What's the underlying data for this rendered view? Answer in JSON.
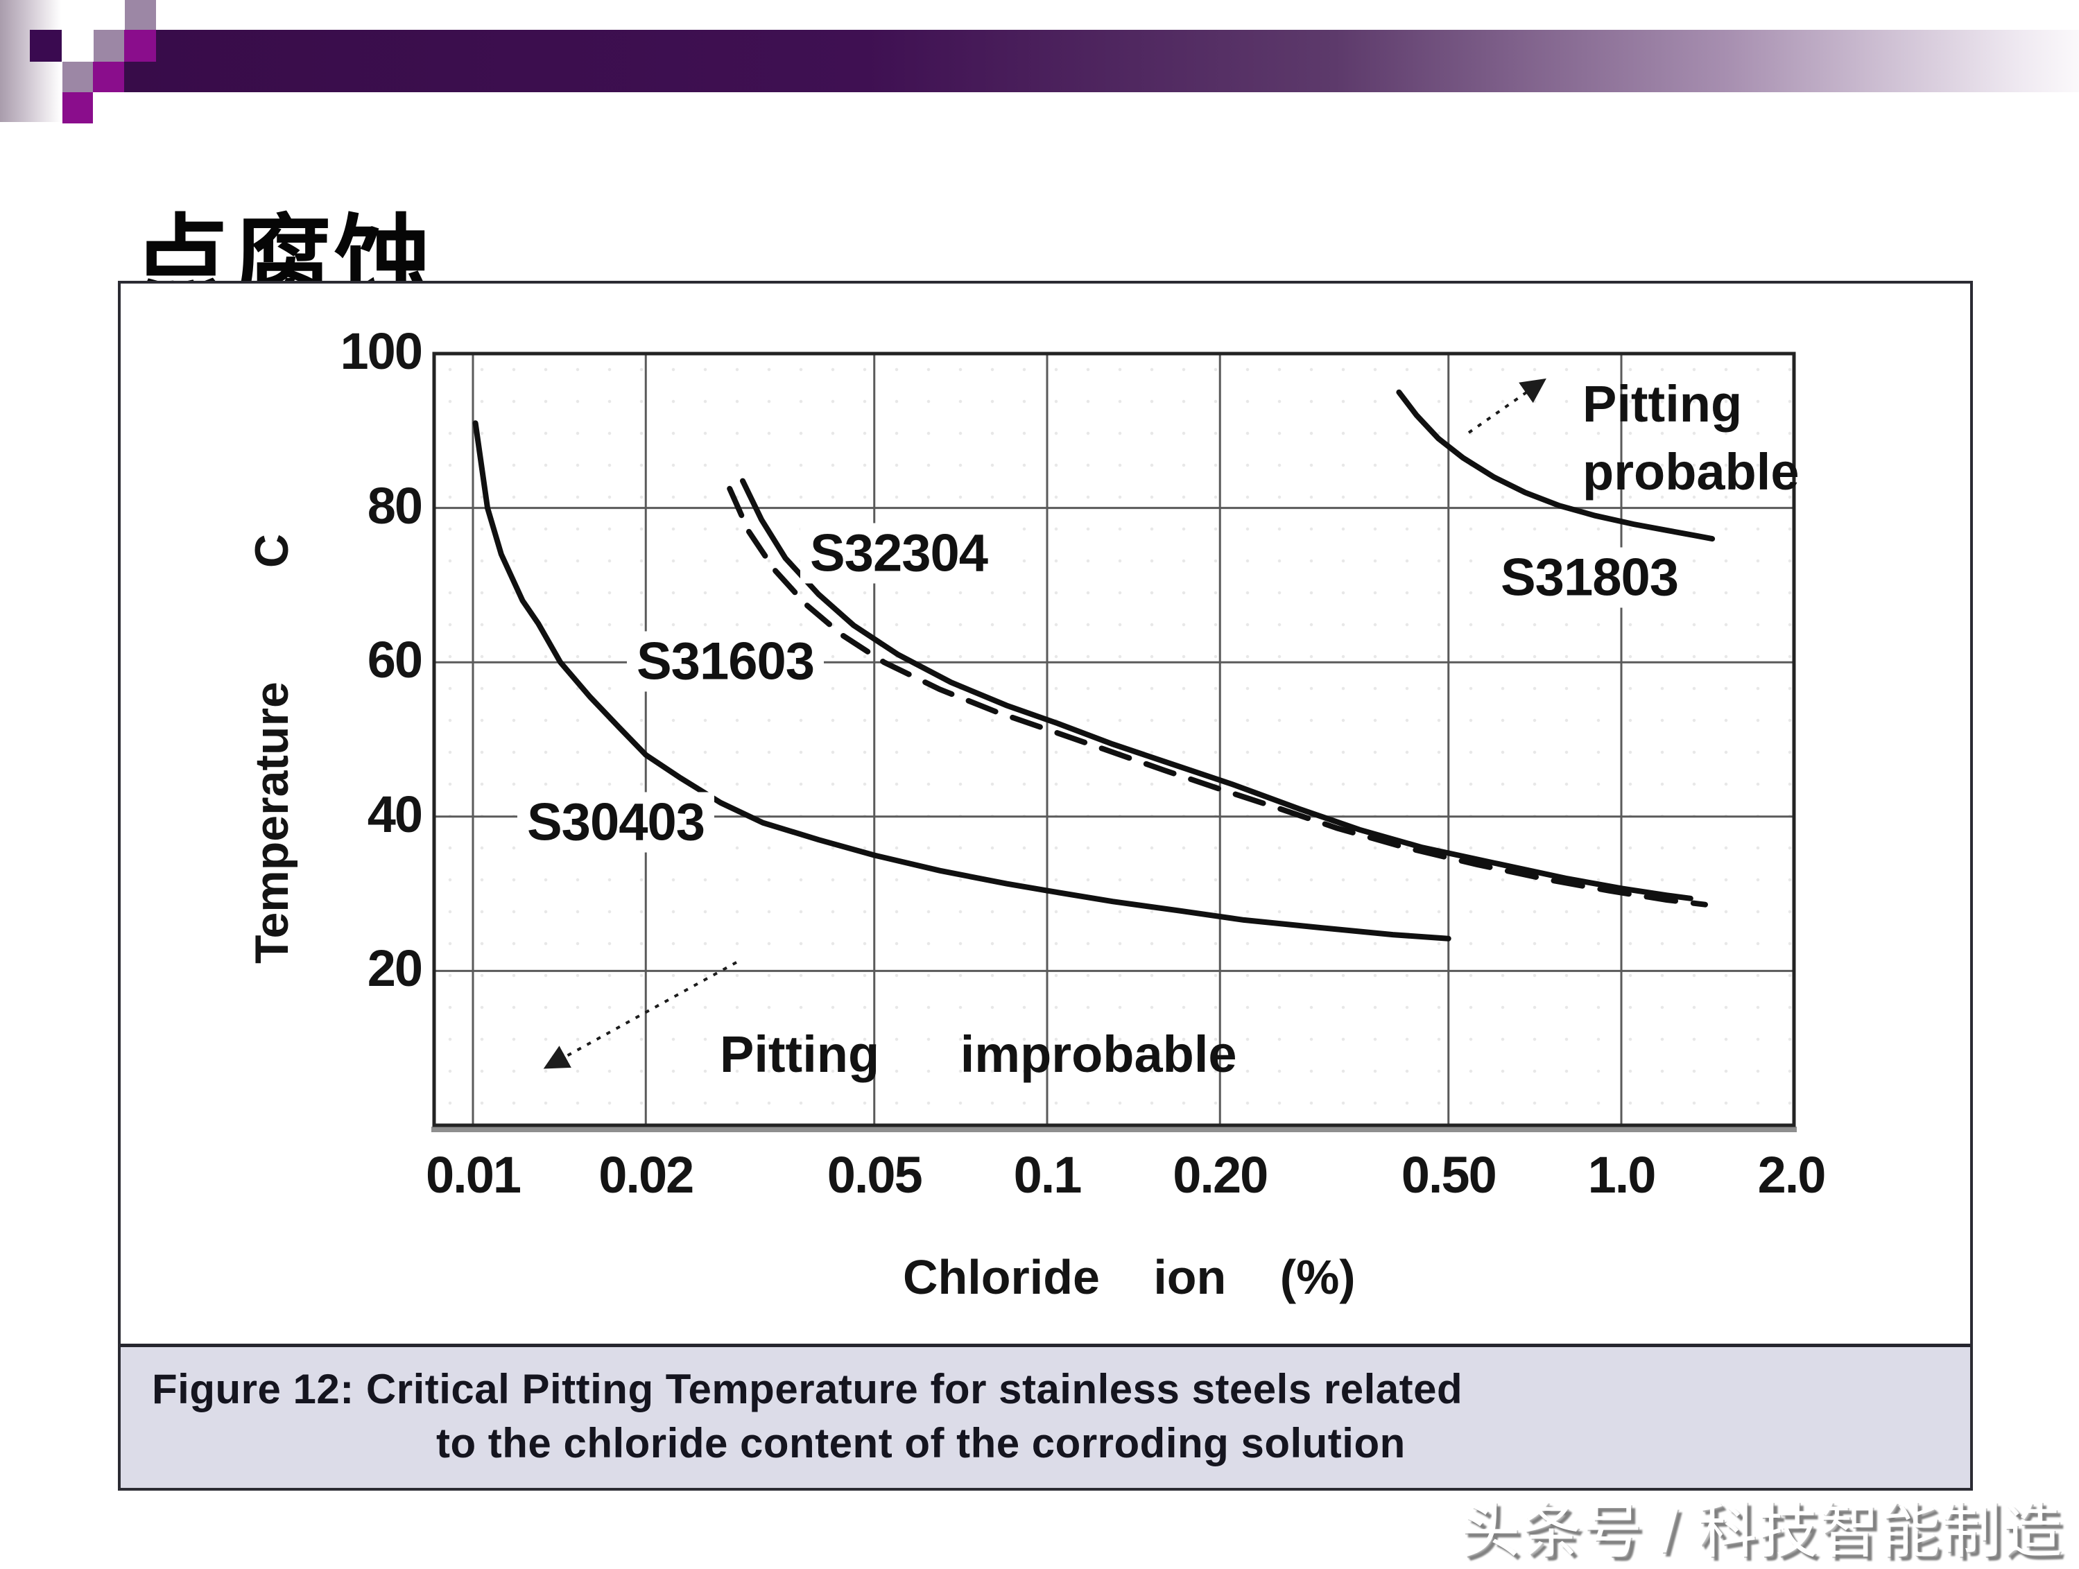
{
  "header": {
    "title": "点腐蚀",
    "colors": {
      "bar_dark": "#3a0a50",
      "magenta": "#8a0d8c",
      "mauve": "#9c87a5",
      "strip": "#a99cac"
    }
  },
  "figure": {
    "caption_line1": "Figure 12: Critical Pitting Temperature for stainless steels related",
    "caption_line2": "to the chloride content of the corroding solution",
    "caption_bg": "#dcdce8"
  },
  "chart_data": {
    "type": "line",
    "title": "",
    "xlabel": "Chloride ion (%)",
    "xlabel_words": [
      "Chloride",
      "ion",
      "(%)"
    ],
    "ylabel": "Temperature C",
    "ylabel_words": [
      "Temperature",
      "C"
    ],
    "x_scale": "log",
    "xlim": [
      0.0085,
      2.0
    ],
    "ylim": [
      0,
      100
    ],
    "grid": true,
    "xticks": [
      {
        "value": 0.01,
        "label": "0.01"
      },
      {
        "value": 0.02,
        "label": "0.02"
      },
      {
        "value": 0.05,
        "label": "0.05"
      },
      {
        "value": 0.1,
        "label": "0.1"
      },
      {
        "value": 0.2,
        "label": "0.20"
      },
      {
        "value": 0.5,
        "label": "0.50"
      },
      {
        "value": 1.0,
        "label": "1.0"
      },
      {
        "value": 2.0,
        "label": "2.0"
      }
    ],
    "yticks": [
      {
        "value": 100,
        "label": "100"
      },
      {
        "value": 80,
        "label": "80"
      },
      {
        "value": 60,
        "label": "60"
      },
      {
        "value": 40,
        "label": "40"
      },
      {
        "value": 20,
        "label": "20"
      }
    ],
    "series": [
      {
        "name": "S30403",
        "style": "solid",
        "points": [
          [
            0.0101,
            91
          ],
          [
            0.0106,
            80
          ],
          [
            0.0112,
            74
          ],
          [
            0.0122,
            68
          ],
          [
            0.013,
            65
          ],
          [
            0.0142,
            60
          ],
          [
            0.016,
            55.5
          ],
          [
            0.018,
            51.5
          ],
          [
            0.02,
            48
          ],
          [
            0.023,
            45
          ],
          [
            0.027,
            41.8
          ],
          [
            0.032,
            39.2
          ],
          [
            0.04,
            37
          ],
          [
            0.05,
            35
          ],
          [
            0.065,
            33
          ],
          [
            0.085,
            31.3
          ],
          [
            0.1,
            30.4
          ],
          [
            0.13,
            29
          ],
          [
            0.17,
            27.8
          ],
          [
            0.22,
            26.6
          ],
          [
            0.3,
            25.6
          ],
          [
            0.4,
            24.7
          ],
          [
            0.5,
            24.2
          ]
        ]
      },
      {
        "name": "S32304",
        "style": "solid",
        "points": [
          [
            0.0295,
            83.5
          ],
          [
            0.0318,
            78.5
          ],
          [
            0.035,
            73.5
          ],
          [
            0.04,
            68.8
          ],
          [
            0.046,
            64.8
          ],
          [
            0.055,
            61
          ],
          [
            0.068,
            57.4
          ],
          [
            0.085,
            54.4
          ],
          [
            0.105,
            52
          ],
          [
            0.13,
            49.4
          ],
          [
            0.165,
            46.8
          ],
          [
            0.21,
            44.2
          ],
          [
            0.275,
            41
          ],
          [
            0.35,
            38.3
          ],
          [
            0.45,
            36
          ],
          [
            0.6,
            34
          ],
          [
            0.8,
            32
          ],
          [
            1.0,
            30.7
          ],
          [
            1.2,
            29.8
          ],
          [
            1.32,
            29.4
          ]
        ]
      },
      {
        "name": "S31603",
        "style": "dashed",
        "points": [
          [
            0.028,
            82.5
          ],
          [
            0.0302,
            77
          ],
          [
            0.0335,
            72
          ],
          [
            0.038,
            67.5
          ],
          [
            0.044,
            63.5
          ],
          [
            0.052,
            60
          ],
          [
            0.065,
            56.5
          ],
          [
            0.082,
            53.5
          ],
          [
            0.1,
            51.3
          ],
          [
            0.125,
            48.8
          ],
          [
            0.16,
            46
          ],
          [
            0.205,
            43.3
          ],
          [
            0.25,
            41.2
          ],
          [
            0.32,
            38.5
          ],
          [
            0.42,
            36
          ],
          [
            0.56,
            33.8
          ],
          [
            0.75,
            31.8
          ],
          [
            0.95,
            30.4
          ],
          [
            1.2,
            29.2
          ],
          [
            1.4,
            28.6
          ]
        ]
      },
      {
        "name": "S31803",
        "style": "solid",
        "points": [
          [
            0.41,
            95
          ],
          [
            0.44,
            92
          ],
          [
            0.48,
            89
          ],
          [
            0.53,
            86.5
          ],
          [
            0.6,
            84
          ],
          [
            0.68,
            82
          ],
          [
            0.78,
            80.3
          ],
          [
            0.9,
            79
          ],
          [
            1.05,
            77.9
          ],
          [
            1.2,
            77.1
          ],
          [
            1.35,
            76.4
          ],
          [
            1.44,
            76
          ]
        ]
      }
    ],
    "annotations": {
      "probable_line1": "Pitting",
      "probable_line2": "probable",
      "improbable": "Pitting improbable"
    }
  },
  "watermark": {
    "text": "头条号 / 科技智能制造"
  }
}
